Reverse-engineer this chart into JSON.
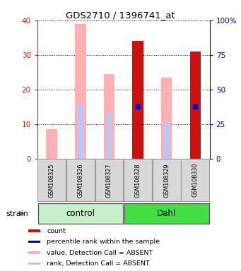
{
  "title": "GDS2710 / 1396741_at",
  "samples": [
    "GSM108325",
    "GSM108326",
    "GSM108327",
    "GSM108328",
    "GSM108329",
    "GSM108330"
  ],
  "groups": [
    {
      "name": "control",
      "samples": [
        0,
        1,
        2
      ],
      "color": "#c8f0c8"
    },
    {
      "name": "Dahl",
      "samples": [
        3,
        4,
        5
      ],
      "color": "#44dd44"
    }
  ],
  "value_absent": [
    8.5,
    39.0,
    24.5,
    null,
    23.5,
    null
  ],
  "rank_absent": [
    null,
    15.5,
    13.5,
    null,
    10.5,
    null
  ],
  "count": [
    null,
    null,
    null,
    34.0,
    null,
    31.0
  ],
  "rank_present": [
    null,
    null,
    null,
    15.0,
    null,
    15.0
  ],
  "ylim_left": [
    0,
    40
  ],
  "ylim_right": [
    0,
    100
  ],
  "yticks_left": [
    0,
    10,
    20,
    30,
    40
  ],
  "yticks_right": [
    0,
    25,
    50,
    75,
    100
  ],
  "yticklabels_right": [
    "0",
    "25",
    "50",
    "75",
    "100%"
  ],
  "bar_width": 0.38,
  "color_value_absent": "#ffb0b0",
  "color_rank_absent": "#b8c8ff",
  "color_count": "#cc1111",
  "color_rank_present": "#0000cc",
  "background_color": "#ffffff",
  "left_tick_color": "#cc2200",
  "right_tick_color": "#0000bb"
}
